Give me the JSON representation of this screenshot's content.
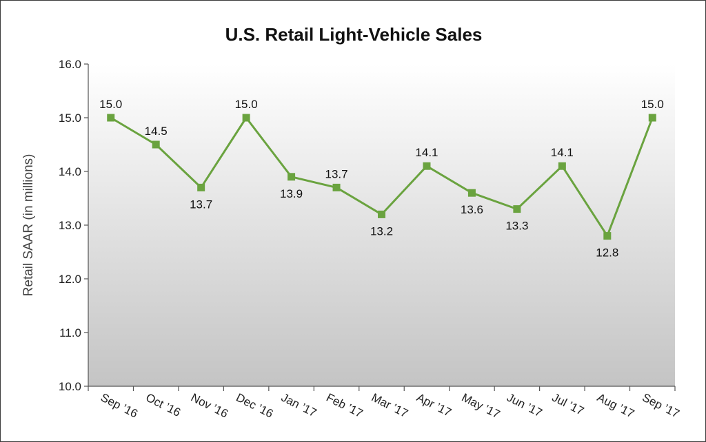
{
  "chart_data": {
    "type": "line",
    "title": "U.S. Retail Light-Vehicle Sales",
    "xlabel": "",
    "ylabel": "Retail SAAR (in millions)",
    "ylim": [
      10.0,
      16.0
    ],
    "yticks": [
      "10.0",
      "11.0",
      "12.0",
      "13.0",
      "14.0",
      "15.0",
      "16.0"
    ],
    "categories": [
      "Sep ’16",
      "Oct ’16",
      "Nov ’16",
      "Dec ’16",
      "Jan ’17",
      "Feb ’17",
      "Mar ’17",
      "Apr ’17",
      "May ’17",
      "Jun ’17",
      "Jul ’17",
      "Aug ’17",
      "Sep ’17"
    ],
    "series": [
      {
        "values": [
          15.0,
          14.5,
          13.7,
          15.0,
          13.9,
          13.7,
          13.2,
          14.1,
          13.6,
          13.3,
          14.1,
          12.8,
          15.0
        ],
        "labels": [
          "15.0",
          "14.5",
          "13.7",
          "15.0",
          "13.9",
          "13.7",
          "13.2",
          "14.1",
          "13.6",
          "13.3",
          "14.1",
          "12.8",
          "15.0"
        ],
        "label_position": [
          "above",
          "above",
          "below",
          "above",
          "below",
          "above",
          "below",
          "above",
          "below",
          "below",
          "above",
          "below",
          "above"
        ],
        "color": "#6aa33f"
      }
    ],
    "grid": false,
    "legend": "none",
    "background_gradient": [
      "#ffffff",
      "#c4c4c4"
    ]
  }
}
